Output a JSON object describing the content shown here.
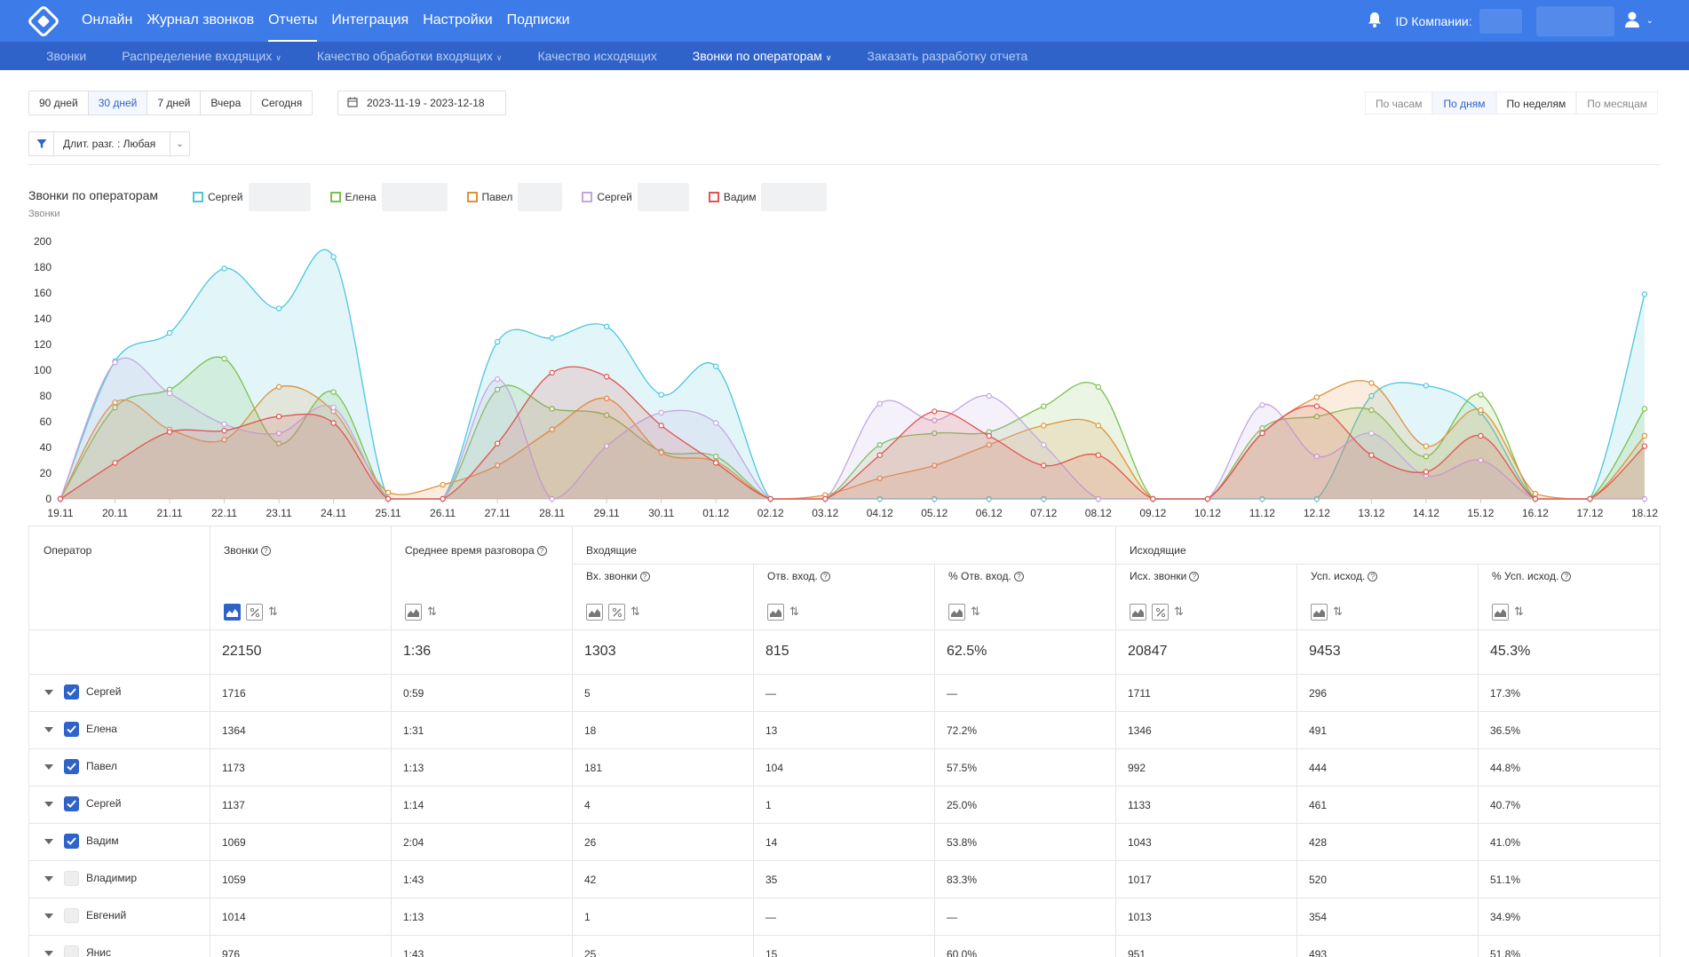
{
  "nav": {
    "items": [
      "Онлайн",
      "Журнал звонков",
      "Отчеты",
      "Интеграция",
      "Настройки",
      "Подписки"
    ],
    "active_index": 2,
    "company_label": "ID Компании:"
  },
  "subnav": {
    "items": [
      {
        "label": "Звонки",
        "dropdown": false
      },
      {
        "label": "Распределение входящих",
        "dropdown": true
      },
      {
        "label": "Качество обработки входящих",
        "dropdown": true
      },
      {
        "label": "Качество исходящих",
        "dropdown": false
      },
      {
        "label": "Звонки по операторам",
        "dropdown": true
      },
      {
        "label": "Заказать разработку отчета",
        "dropdown": false
      }
    ],
    "active_index": 4
  },
  "period_buttons": [
    "90 дней",
    "30 дней",
    "7 дней",
    "Вчера",
    "Сегодня"
  ],
  "period_active": 1,
  "date_range": "2023-11-19 - 2023-12-18",
  "grouping_buttons": [
    "По часам",
    "По дням",
    "По неделям",
    "По месяцам"
  ],
  "grouping_active": 1,
  "filter_label": "Длит. разг. : Любая",
  "chart_title": "Звонки по операторам",
  "chart_data": {
    "type": "area",
    "ylabel": "Звонки",
    "ylim": [
      0,
      200
    ],
    "yticks": [
      0,
      20,
      40,
      60,
      80,
      100,
      120,
      140,
      160,
      180,
      200
    ],
    "x": [
      "19.11",
      "20.11",
      "21.11",
      "22.11",
      "23.11",
      "24.11",
      "25.11",
      "26.11",
      "27.11",
      "28.11",
      "29.11",
      "30.11",
      "01.12",
      "02.12",
      "03.12",
      "04.12",
      "05.12",
      "06.12",
      "07.12",
      "08.12",
      "09.12",
      "10.12",
      "11.12",
      "12.12",
      "13.12",
      "14.12",
      "15.12",
      "16.12",
      "17.12",
      "18.12"
    ],
    "series": [
      {
        "name": "Сергей",
        "color": "#4cc6dc",
        "values": [
          0,
          107,
          129,
          179,
          148,
          188,
          0,
          0,
          122,
          125,
          134,
          81,
          103,
          0,
          0,
          0,
          0,
          0,
          0,
          0,
          0,
          0,
          0,
          0,
          80,
          88,
          67,
          0,
          0,
          159
        ]
      },
      {
        "name": "Елена",
        "color": "#7cbf4f",
        "values": [
          0,
          71,
          85,
          109,
          43,
          83,
          0,
          0,
          85,
          70,
          65,
          37,
          33,
          0,
          0,
          42,
          51,
          52,
          72,
          87,
          0,
          0,
          55,
          64,
          69,
          33,
          81,
          0,
          0,
          70
        ]
      },
      {
        "name": "Павел",
        "color": "#e0913a",
        "values": [
          0,
          75,
          54,
          46,
          87,
          68,
          5,
          11,
          26,
          54,
          78,
          36,
          29,
          0,
          3,
          16,
          26,
          42,
          57,
          57,
          0,
          0,
          51,
          79,
          90,
          41,
          69,
          4,
          0,
          49
        ]
      },
      {
        "name": "Сергей",
        "color": "#c3a6e0",
        "values": [
          0,
          106,
          82,
          58,
          51,
          71,
          0,
          0,
          93,
          0,
          41,
          67,
          59,
          0,
          0,
          74,
          61,
          80,
          42,
          0,
          0,
          0,
          73,
          33,
          51,
          18,
          30,
          0,
          0,
          0
        ]
      },
      {
        "name": "Вадим",
        "color": "#e3524f",
        "values": [
          0,
          28,
          52,
          53,
          64,
          59,
          0,
          0,
          43,
          98,
          95,
          57,
          28,
          0,
          0,
          34,
          68,
          49,
          26,
          34,
          0,
          0,
          51,
          72,
          34,
          21,
          49,
          0,
          0,
          41
        ]
      }
    ]
  },
  "table": {
    "headers": {
      "operator": "Оператор",
      "calls": "Звонки",
      "avg_time": "Среднее время разговора",
      "incoming_group": "Входящие",
      "in_calls": "Вх. звонки",
      "ans_in": "Отв. вход.",
      "pct_ans_in": "% Отв. вход.",
      "outgoing_group": "Исходящие",
      "out_calls": "Исх. звонки",
      "succ_out": "Усп. исход.",
      "pct_succ_out": "% Усп. исход."
    },
    "totals": [
      "22150",
      "1:36",
      "1303",
      "815",
      "62.5%",
      "20847",
      "9453",
      "45.3%"
    ],
    "rows": [
      {
        "name": "Сергей",
        "checked": true,
        "cells": [
          "1716",
          "0:59",
          "5",
          "—",
          "—",
          "1711",
          "296",
          "17.3%"
        ]
      },
      {
        "name": "Елена",
        "checked": true,
        "cells": [
          "1364",
          "1:31",
          "18",
          "13",
          "72.2%",
          "1346",
          "491",
          "36.5%"
        ]
      },
      {
        "name": "Павел",
        "checked": true,
        "cells": [
          "1173",
          "1:13",
          "181",
          "104",
          "57.5%",
          "992",
          "444",
          "44.8%"
        ]
      },
      {
        "name": "Сергей",
        "checked": true,
        "cells": [
          "1137",
          "1:14",
          "4",
          "1",
          "25.0%",
          "1133",
          "461",
          "40.7%"
        ]
      },
      {
        "name": "Вадим",
        "checked": true,
        "cells": [
          "1069",
          "2:04",
          "26",
          "14",
          "53.8%",
          "1043",
          "428",
          "41.0%"
        ]
      },
      {
        "name": "Владимир",
        "checked": false,
        "cells": [
          "1059",
          "1:43",
          "42",
          "35",
          "83.3%",
          "1017",
          "520",
          "51.1%"
        ]
      },
      {
        "name": "Евгений",
        "checked": false,
        "cells": [
          "1014",
          "1:13",
          "1",
          "—",
          "—",
          "1013",
          "354",
          "34.9%"
        ]
      },
      {
        "name": "Янис",
        "checked": false,
        "cells": [
          "976",
          "1:43",
          "25",
          "15",
          "60.0%",
          "951",
          "493",
          "51.8%"
        ]
      }
    ]
  }
}
